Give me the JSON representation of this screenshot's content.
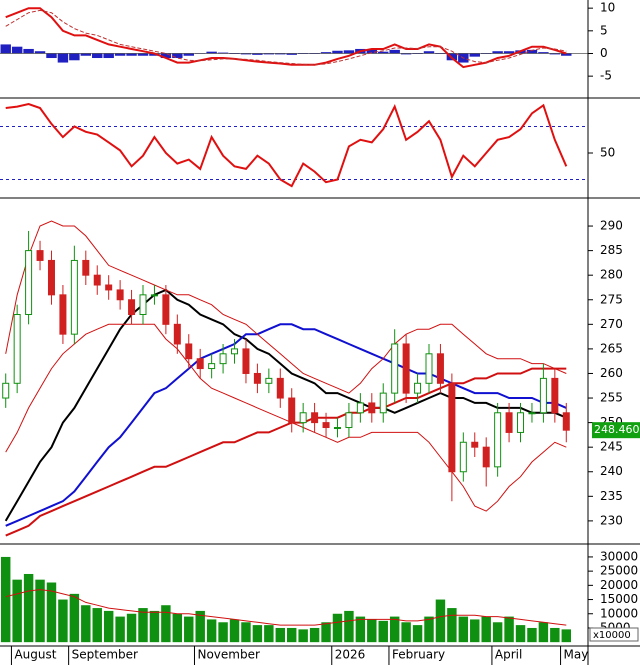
{
  "chart_data": [
    {
      "type": "line",
      "series": [
        {
          "color": "#e01010",
          "style": "solid",
          "values": [
            8,
            9,
            10,
            10,
            8,
            5,
            4,
            4,
            3,
            2,
            1.5,
            1,
            0.5,
            0,
            -1,
            -2,
            -2,
            -1.5,
            -1,
            -1,
            -1.2,
            -1.5,
            -1.8,
            -2,
            -2.2,
            -2.5,
            -2.5,
            -2.5,
            -2,
            -1.2,
            -0.5,
            0.5,
            1,
            1,
            2,
            1,
            1,
            2,
            1.5,
            -1,
            -3,
            -2.5,
            -2,
            -1,
            -0.5,
            0.5,
            1.5,
            1.5,
            0.8,
            0
          ]
        },
        {
          "color": "#c03030",
          "style": "dashed",
          "values": [
            6,
            7.5,
            9,
            9.5,
            9,
            7,
            5.5,
            4.5,
            4,
            3,
            2,
            1.5,
            1,
            0.5,
            0,
            -1,
            -1.5,
            -1.6,
            -1.4,
            -1.2,
            -1.2,
            -1.3,
            -1.5,
            -1.8,
            -2,
            -2.2,
            -2.4,
            -2.5,
            -2.3,
            -1.8,
            -1.2,
            -0.5,
            0.2,
            0.6,
            1.2,
            1.2,
            1.1,
            1.5,
            1.5,
            0.5,
            -1,
            -1.8,
            -2,
            -1.5,
            -1,
            -0.2,
            0.7,
            1.2,
            1,
            0.5
          ]
        }
      ],
      "histogram": {
        "color": "#2020c0",
        "values": [
          2,
          1.5,
          1,
          0.5,
          -1,
          -2,
          -1.5,
          -0.5,
          -1,
          -1,
          -0.5,
          -0.5,
          -0.5,
          -0.5,
          -1,
          -1,
          -0.5,
          0.1,
          0.4,
          0.2,
          0,
          -0.2,
          -0.3,
          -0.2,
          -0.2,
          -0.3,
          -0.1,
          0,
          0.3,
          0.6,
          0.7,
          1,
          0.8,
          0.4,
          0.8,
          -0.2,
          -0.1,
          0.5,
          0,
          -1.5,
          -2,
          -0.7,
          0,
          0.5,
          0.5,
          0.7,
          0.8,
          0.3,
          -0.2,
          -0.5
        ]
      },
      "ylim": [
        -9.6,
        11.8
      ],
      "yticks": [
        10,
        5,
        0,
        -5
      ]
    },
    {
      "type": "line",
      "series": [
        {
          "color": "#e01010",
          "style": "solid",
          "values": [
            84,
            85,
            87,
            84,
            72,
            62,
            70,
            66,
            64,
            58,
            52,
            40,
            48,
            62,
            50,
            42,
            45,
            38,
            62,
            48,
            40,
            38,
            48,
            42,
            30,
            25,
            42,
            36,
            28,
            30,
            55,
            60,
            58,
            68,
            85,
            60,
            66,
            74,
            60,
            32,
            48,
            40,
            50,
            60,
            62,
            68,
            80,
            86,
            60,
            40
          ]
        }
      ],
      "levels": [
        70,
        30
      ],
      "level_color": "#2020c0",
      "ylim": [
        16.8,
        90
      ],
      "yticks": [
        50
      ]
    },
    {
      "type": "candlestick",
      "open": [
        255,
        258,
        272,
        285,
        283,
        276,
        268,
        283,
        280,
        278,
        277,
        275,
        272,
        276,
        276,
        270,
        266,
        263,
        261,
        262,
        264,
        265,
        260,
        258,
        259,
        255,
        250,
        252,
        250,
        249,
        249,
        252,
        254,
        252,
        256,
        266,
        256,
        258,
        264,
        258,
        240,
        246,
        245,
        241,
        252,
        248,
        252,
        252,
        259,
        252
      ],
      "high": [
        260,
        274,
        289,
        287,
        285,
        278,
        286,
        285,
        282,
        280,
        279,
        277,
        278,
        278,
        278,
        272,
        268,
        265,
        264,
        266,
        267,
        267,
        262,
        261,
        261,
        257,
        254,
        254,
        252,
        251,
        254,
        256,
        256,
        258,
        269,
        268,
        260,
        266,
        266,
        260,
        248,
        248,
        247,
        254,
        254,
        254,
        254,
        262,
        261,
        254
      ],
      "low": [
        253,
        256,
        270,
        281,
        274,
        266,
        266,
        278,
        276,
        275,
        273,
        270,
        270,
        274,
        268,
        264,
        261,
        259,
        259,
        260,
        262,
        258,
        256,
        256,
        253,
        248,
        248,
        248,
        247,
        247,
        247,
        250,
        250,
        250,
        254,
        254,
        254,
        256,
        256,
        234,
        238,
        243,
        237,
        239,
        246,
        246,
        250,
        250,
        250,
        246
      ],
      "close": [
        258,
        272,
        285,
        283,
        276,
        268,
        283,
        280,
        278,
        277,
        275,
        272,
        276,
        276,
        270,
        266,
        263,
        261,
        262,
        264,
        265,
        260,
        258,
        259,
        255,
        250,
        252,
        250,
        249,
        249,
        252,
        254,
        252,
        256,
        266,
        256,
        258,
        264,
        258,
        240,
        246,
        245,
        241,
        252,
        248,
        252,
        252,
        259,
        252,
        248.46
      ],
      "up_color": "#109010",
      "down_color": "#d02020",
      "series": [
        {
          "color": "#000000",
          "width": 2,
          "values": [
            230,
            234,
            238,
            242,
            245,
            250,
            253,
            257,
            261,
            265,
            269,
            272,
            274,
            276,
            277,
            275,
            274,
            272,
            271,
            270,
            268,
            267,
            265,
            264,
            262,
            260,
            259,
            258,
            256,
            256,
            255,
            254,
            253,
            253,
            252,
            253,
            254,
            255,
            256,
            255,
            255,
            254,
            254,
            253,
            253,
            253,
            252,
            252,
            252,
            251
          ]
        },
        {
          "color": "#1010d0",
          "width": 2,
          "values": [
            229,
            230,
            231,
            232,
            233,
            234,
            236,
            239,
            242,
            245,
            247,
            250,
            253,
            256,
            257,
            259,
            261,
            263,
            264,
            265,
            266,
            268,
            268,
            269,
            270,
            270,
            269,
            269,
            268,
            267,
            266,
            265,
            264,
            263,
            262,
            261,
            260,
            260,
            259,
            258,
            257,
            256,
            256,
            256,
            255,
            255,
            255,
            254,
            254,
            253
          ]
        },
        {
          "color": "#d01010",
          "width": 2,
          "values": [
            227,
            228,
            229,
            231,
            232,
            233,
            234,
            235,
            236,
            237,
            238,
            239,
            240,
            241,
            241,
            242,
            243,
            244,
            245,
            246,
            246,
            247,
            248,
            248,
            249,
            250,
            250,
            251,
            251,
            251,
            252,
            252,
            253,
            253,
            254,
            255,
            255,
            256,
            257,
            258,
            258,
            259,
            259,
            260,
            260,
            260,
            261,
            261,
            261,
            261
          ]
        },
        {
          "color": "#d01010",
          "width": 1,
          "values": [
            264,
            276,
            284,
            290,
            291,
            290,
            290,
            288,
            285,
            282,
            281,
            280,
            279,
            278,
            277,
            276,
            276,
            275,
            274,
            272,
            271,
            270,
            268,
            266,
            264,
            262,
            260,
            259,
            258,
            257,
            256,
            258,
            261,
            263,
            266,
            268,
            269,
            269,
            270,
            270,
            268,
            266,
            264,
            263,
            263,
            263,
            262,
            262,
            261,
            260
          ]
        },
        {
          "color": "#d01010",
          "width": 1,
          "values": [
            244,
            248,
            253,
            257,
            261,
            264,
            266,
            268,
            269,
            270,
            270,
            270,
            270,
            270,
            267,
            265,
            262,
            259,
            257,
            256,
            255,
            254,
            253,
            252,
            251,
            250,
            249,
            248,
            247,
            246,
            247,
            247,
            248,
            248,
            248,
            248,
            248,
            246,
            243,
            240,
            237,
            233,
            232,
            234,
            237,
            239,
            242,
            244,
            246,
            245
          ]
        }
      ],
      "last_price": {
        "value": 248.46,
        "label": "248.4600"
      },
      "last_color": "#10a010",
      "ylim": [
        225.5,
        295.3
      ],
      "yticks": [
        230,
        235,
        240,
        245,
        250,
        255,
        260,
        265,
        270,
        275,
        280,
        285,
        290
      ]
    },
    {
      "type": "bar",
      "categories": [
        null,
        "August",
        null,
        null,
        null,
        null,
        "September",
        null,
        null,
        null,
        null,
        null,
        null,
        null,
        null,
        null,
        null,
        "November",
        null,
        null,
        null,
        null,
        null,
        null,
        null,
        null,
        null,
        null,
        null,
        "2026",
        null,
        null,
        null,
        null,
        "February",
        null,
        null,
        null,
        null,
        null,
        null,
        null,
        null,
        "April",
        null,
        null,
        null,
        null,
        null,
        "May"
      ],
      "values": [
        30000,
        22000,
        24000,
        22000,
        21000,
        15000,
        17000,
        13000,
        12000,
        11000,
        9000,
        10000,
        12000,
        11000,
        13000,
        10000,
        9000,
        11000,
        8000,
        7000,
        8000,
        7000,
        6000,
        6000,
        5000,
        5000,
        4500,
        5000,
        7000,
        10000,
        11000,
        9000,
        8000,
        7500,
        9000,
        7000,
        6000,
        9000,
        15000,
        12000,
        9000,
        8000,
        9000,
        7000,
        9000,
        6000,
        5000,
        7000,
        5000,
        4500
      ],
      "color": "#109010",
      "series": [
        {
          "color": "#d01010",
          "values": [
            16000,
            17000,
            18000,
            18500,
            18000,
            17000,
            16000,
            14000,
            13000,
            12000,
            11500,
            11000,
            10500,
            10500,
            10500,
            10000,
            10000,
            9500,
            9000,
            8500,
            8000,
            7500,
            7000,
            6500,
            6000,
            6000,
            6000,
            6000,
            6500,
            7000,
            7500,
            8000,
            8000,
            8000,
            8000,
            7500,
            7500,
            8000,
            9000,
            9500,
            9500,
            9500,
            9000,
            9000,
            8500,
            8000,
            7500,
            7000,
            6500,
            6000
          ]
        }
      ],
      "annotation": "x10000",
      "ylim": [
        -1000,
        34200
      ],
      "yticks": [
        30000,
        25000,
        20000,
        15000,
        10000,
        5000
      ]
    }
  ]
}
